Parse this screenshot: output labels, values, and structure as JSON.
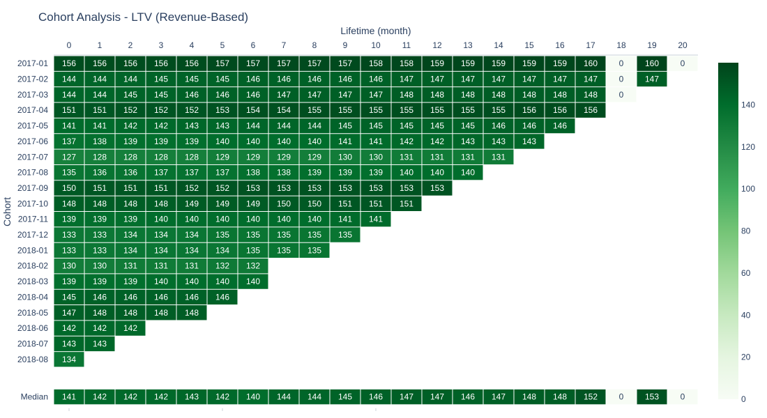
{
  "chart_data": {
    "type": "heatmap",
    "title": "Cohort Analysis - LTV (Revenue-Based)",
    "xlabel": "Lifetime (month)",
    "ylabel": "Cohort",
    "x": [
      "0",
      "1",
      "2",
      "3",
      "4",
      "5",
      "6",
      "7",
      "8",
      "9",
      "10",
      "11",
      "12",
      "13",
      "14",
      "15",
      "16",
      "17",
      "18",
      "19",
      "20"
    ],
    "rows": [
      {
        "name": "2017-01",
        "values": [
          156,
          156,
          156,
          156,
          156,
          157,
          157,
          157,
          157,
          157,
          158,
          158,
          159,
          159,
          159,
          159,
          159,
          160,
          0,
          160,
          0
        ]
      },
      {
        "name": "2017-02",
        "values": [
          144,
          144,
          144,
          145,
          145,
          145,
          146,
          146,
          146,
          146,
          146,
          147,
          147,
          147,
          147,
          147,
          147,
          147,
          0,
          147
        ]
      },
      {
        "name": "2017-03",
        "values": [
          144,
          144,
          145,
          145,
          146,
          146,
          146,
          147,
          147,
          147,
          147,
          148,
          148,
          148,
          148,
          148,
          148,
          148,
          0
        ]
      },
      {
        "name": "2017-04",
        "values": [
          151,
          151,
          152,
          152,
          152,
          153,
          154,
          154,
          155,
          155,
          155,
          155,
          155,
          155,
          155,
          156,
          156,
          156
        ]
      },
      {
        "name": "2017-05",
        "values": [
          141,
          141,
          142,
          142,
          143,
          143,
          144,
          144,
          144,
          145,
          145,
          145,
          145,
          145,
          146,
          146,
          146
        ]
      },
      {
        "name": "2017-06",
        "values": [
          137,
          138,
          139,
          139,
          139,
          140,
          140,
          140,
          140,
          141,
          141,
          142,
          142,
          143,
          143,
          143
        ]
      },
      {
        "name": "2017-07",
        "values": [
          127,
          128,
          128,
          128,
          128,
          129,
          129,
          129,
          129,
          130,
          130,
          131,
          131,
          131,
          131
        ]
      },
      {
        "name": "2017-08",
        "values": [
          135,
          136,
          136,
          137,
          137,
          137,
          138,
          138,
          139,
          139,
          139,
          140,
          140,
          140
        ]
      },
      {
        "name": "2017-09",
        "values": [
          150,
          151,
          151,
          151,
          152,
          152,
          153,
          153,
          153,
          153,
          153,
          153,
          153
        ]
      },
      {
        "name": "2017-10",
        "values": [
          148,
          148,
          148,
          148,
          149,
          149,
          149,
          150,
          150,
          151,
          151,
          151
        ]
      },
      {
        "name": "2017-11",
        "values": [
          139,
          139,
          139,
          140,
          140,
          140,
          140,
          140,
          140,
          141,
          141
        ]
      },
      {
        "name": "2017-12",
        "values": [
          133,
          133,
          134,
          134,
          134,
          135,
          135,
          135,
          135,
          135
        ]
      },
      {
        "name": "2018-01",
        "values": [
          133,
          133,
          134,
          134,
          134,
          134,
          135,
          135,
          135
        ]
      },
      {
        "name": "2018-02",
        "values": [
          130,
          130,
          131,
          131,
          131,
          132,
          132
        ]
      },
      {
        "name": "2018-03",
        "values": [
          139,
          139,
          139,
          140,
          140,
          140,
          140
        ]
      },
      {
        "name": "2018-04",
        "values": [
          145,
          146,
          146,
          146,
          146,
          146
        ]
      },
      {
        "name": "2018-05",
        "values": [
          147,
          148,
          148,
          148,
          148
        ]
      },
      {
        "name": "2018-06",
        "values": [
          142,
          142,
          142
        ]
      },
      {
        "name": "2018-07",
        "values": [
          143,
          143
        ]
      },
      {
        "name": "2018-08",
        "values": [
          134
        ]
      }
    ],
    "median": {
      "name": "Median",
      "values": [
        141,
        142,
        142,
        142,
        143,
        142,
        140,
        144,
        144,
        145,
        146,
        147,
        147,
        146,
        147,
        148,
        148,
        152,
        0,
        153,
        0
      ]
    },
    "colorscale": {
      "min": 0,
      "max": 160,
      "low": "#f7fcf5",
      "high": "#00441b",
      "ticks": [
        0,
        20,
        40,
        60,
        80,
        100,
        120,
        140
      ]
    },
    "legend": "right"
  }
}
